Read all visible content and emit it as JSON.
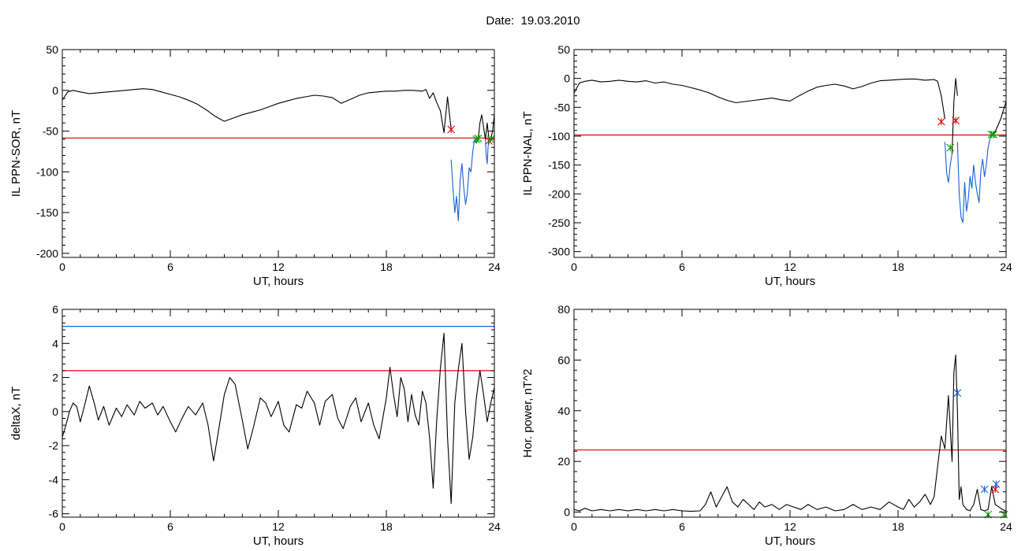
{
  "figure": {
    "title": "Date:  19.03.2010"
  },
  "chart_data": [
    {
      "type": "line",
      "xlabel": "UT, hours",
      "ylabel": "IL PPN-SOR, nT",
      "xlim": [
        0,
        24
      ],
      "ylim": [
        -205,
        50
      ],
      "xticks": [
        0,
        6,
        12,
        18,
        24
      ],
      "yticks": [
        50,
        0,
        -50,
        -100,
        -150,
        -200
      ],
      "hlines": [
        {
          "y": -58.5,
          "color": "#e00000"
        }
      ],
      "series": [
        {
          "color": "#000000",
          "x": [
            0,
            0.3,
            0.6,
            1,
            1.5,
            2,
            2.5,
            3,
            3.5,
            4,
            4.5,
            5,
            5.5,
            6,
            6.5,
            7,
            7.5,
            8,
            8.5,
            9,
            9.5,
            10,
            10.5,
            11,
            11.5,
            12,
            12.5,
            13,
            13.5,
            14,
            14.5,
            15,
            15.5,
            16,
            16.5,
            17,
            17.5,
            18,
            18.5,
            19,
            19.5,
            20,
            20.2,
            20.4,
            20.6,
            20.8,
            21.0,
            21.2,
            21.4,
            21.6
          ],
          "y": [
            -12,
            -2,
            0,
            -2,
            -4,
            -3,
            -2,
            -1,
            0,
            1,
            2,
            1,
            -2,
            -5,
            -8,
            -12,
            -17,
            -24,
            -32,
            -38,
            -34,
            -30,
            -27,
            -24,
            -20,
            -16,
            -13,
            -10,
            -8,
            -6,
            -7,
            -9,
            -16,
            -11,
            -6,
            -3,
            -2,
            -1,
            -1,
            0,
            0,
            -1,
            1,
            -10,
            -3,
            -15,
            -25,
            -52,
            -8,
            -48
          ]
        },
        {
          "color": "#1560d8",
          "x": [
            21.6,
            21.7,
            21.8,
            21.9,
            22.0,
            22.1,
            22.2,
            22.3,
            22.4,
            22.5,
            22.6,
            22.7,
            22.8,
            22.9,
            23.0,
            23.1
          ],
          "y": [
            -85,
            -120,
            -150,
            -130,
            -160,
            -110,
            -90,
            -120,
            -140,
            -125,
            -95,
            -100,
            -75,
            -60,
            -65,
            -60
          ]
        },
        {
          "color": "#000000",
          "x": [
            23.1,
            23.2,
            23.3,
            23.4,
            23.5,
            23.6,
            23.7,
            23.8,
            23.9,
            24.0
          ],
          "y": [
            -60,
            -40,
            -30,
            -45,
            -60,
            -40,
            -60,
            -60,
            -50,
            -30
          ]
        },
        {
          "color": "#1560d8",
          "x": [
            23.5,
            23.55,
            23.6,
            23.65,
            23.7
          ],
          "y": [
            -60,
            -80,
            -90,
            -70,
            -60
          ]
        }
      ],
      "markers": [
        {
          "x": 21.6,
          "y": -48,
          "color": "#e00000"
        },
        {
          "x": 23.0,
          "y": -60,
          "color": "#00a000"
        },
        {
          "x": 23.1,
          "y": -59,
          "color": "#00a000"
        },
        {
          "x": 23.7,
          "y": -62,
          "color": "#e00000"
        },
        {
          "x": 23.8,
          "y": -60,
          "color": "#00a000"
        }
      ]
    },
    {
      "type": "line",
      "xlabel": "UT, hours",
      "ylabel": "IL PPN-NAL, nT",
      "xlim": [
        0,
        24
      ],
      "ylim": [
        -310,
        50
      ],
      "xticks": [
        0,
        6,
        12,
        18,
        24
      ],
      "yticks": [
        50,
        0,
        -50,
        -100,
        -150,
        -200,
        -250,
        -300
      ],
      "hlines": [
        {
          "y": -98,
          "color": "#e00000"
        }
      ],
      "series": [
        {
          "color": "#000000",
          "x": [
            0,
            0.3,
            0.6,
            1,
            1.5,
            2,
            2.5,
            3,
            3.5,
            4,
            4.5,
            5,
            5.5,
            6,
            6.5,
            7,
            7.5,
            8,
            8.5,
            9,
            9.5,
            10,
            10.5,
            11,
            11.5,
            12,
            12.5,
            13,
            13.5,
            14,
            14.5,
            15,
            15.5,
            16,
            16.5,
            17,
            17.5,
            18,
            18.5,
            19,
            19.5,
            20,
            20.2,
            20.4,
            20.6
          ],
          "y": [
            -25,
            -8,
            -5,
            -3,
            -6,
            -5,
            -3,
            -5,
            -6,
            -4,
            -8,
            -6,
            -10,
            -12,
            -16,
            -20,
            -25,
            -32,
            -38,
            -42,
            -40,
            -38,
            -36,
            -34,
            -37,
            -39,
            -30,
            -22,
            -15,
            -12,
            -10,
            -13,
            -18,
            -14,
            -8,
            -4,
            -3,
            -2,
            -1,
            -1,
            -3,
            -2,
            -5,
            -30,
            -70
          ]
        },
        {
          "color": "#1560d8",
          "x": [
            20.6,
            20.7,
            20.8,
            20.9,
            21.0
          ],
          "y": [
            -110,
            -165,
            -180,
            -150,
            -130
          ]
        },
        {
          "color": "#000000",
          "x": [
            21.0,
            21.1,
            21.2,
            21.3
          ],
          "y": [
            -130,
            -40,
            0,
            -30
          ]
        },
        {
          "color": "#1560d8",
          "x": [
            21.3,
            21.4,
            21.5,
            21.6,
            21.7,
            21.8,
            21.9,
            22.0,
            22.1,
            22.2,
            22.3,
            22.4,
            22.5,
            22.6,
            22.7,
            22.8,
            22.9,
            23.0,
            23.1,
            23.2,
            23.3
          ],
          "y": [
            -110,
            -200,
            -240,
            -250,
            -180,
            -230,
            -210,
            -170,
            -190,
            -150,
            -180,
            -200,
            -215,
            -160,
            -140,
            -170,
            -150,
            -120,
            -105,
            -98,
            -98
          ]
        },
        {
          "color": "#000000",
          "x": [
            23.3,
            23.5,
            23.7,
            24.0
          ],
          "y": [
            -98,
            -85,
            -70,
            -40
          ]
        }
      ],
      "markers": [
        {
          "x": 20.4,
          "y": -75,
          "color": "#e00000"
        },
        {
          "x": 20.9,
          "y": -120,
          "color": "#00a000"
        },
        {
          "x": 21.2,
          "y": -73,
          "color": "#e00000"
        },
        {
          "x": 23.2,
          "y": -97,
          "color": "#00a000"
        },
        {
          "x": 23.3,
          "y": -97,
          "color": "#00a000"
        }
      ]
    },
    {
      "type": "line",
      "xlabel": "UT, hours",
      "ylabel": "deltaX, nT",
      "xlim": [
        0,
        24
      ],
      "ylim": [
        -6.2,
        6
      ],
      "xticks": [
        0,
        6,
        12,
        18,
        24
      ],
      "yticks": [
        6,
        4,
        2,
        0,
        -2,
        -4,
        -6
      ],
      "hlines": [
        {
          "y": 5.0,
          "color": "#1560d8"
        },
        {
          "y": 2.4,
          "color": "#e00000"
        }
      ],
      "series": [
        {
          "color": "#000000",
          "x": [
            0,
            0.2,
            0.4,
            0.6,
            0.8,
            1.0,
            1.2,
            1.5,
            1.8,
            2.0,
            2.3,
            2.6,
            3.0,
            3.3,
            3.6,
            4.0,
            4.3,
            4.6,
            5.0,
            5.3,
            5.6,
            6.0,
            6.3,
            6.6,
            7.0,
            7.4,
            7.8,
            8.1,
            8.4,
            8.7,
            9.0,
            9.3,
            9.6,
            10.0,
            10.3,
            10.6,
            11.0,
            11.3,
            11.6,
            12.0,
            12.3,
            12.6,
            13.0,
            13.3,
            13.6,
            14.0,
            14.3,
            14.6,
            15.0,
            15.3,
            15.6,
            16.0,
            16.3,
            16.6,
            17.0,
            17.3,
            17.6,
            18.0,
            18.2,
            18.4,
            18.6,
            18.8,
            19.0,
            19.2,
            19.4,
            19.6,
            19.8,
            20.0,
            20.2,
            20.4,
            20.6,
            20.8,
            21.0,
            21.2,
            21.4,
            21.6,
            21.8,
            22.0,
            22.2,
            22.4,
            22.6,
            22.8,
            23.0,
            23.2,
            23.4,
            23.6,
            23.8,
            24.0
          ],
          "y": [
            -1.5,
            -0.8,
            0,
            0.5,
            0.3,
            -0.6,
            0.2,
            1.5,
            0.4,
            -0.5,
            0.3,
            -0.8,
            0.2,
            -0.3,
            0.4,
            -0.2,
            0.6,
            0.2,
            0.5,
            -0.2,
            0.3,
            -0.6,
            -1.2,
            -0.5,
            0.3,
            -0.2,
            0.5,
            -0.8,
            -2.9,
            -1.0,
            1.0,
            2.0,
            1.6,
            -0.5,
            -2.2,
            -1.0,
            0.8,
            0.5,
            -0.3,
            0.6,
            -0.8,
            -1.2,
            0.4,
            0.2,
            1.2,
            0.5,
            -0.8,
            0.6,
            1.0,
            -0.4,
            -1.0,
            0.3,
            0.8,
            -0.6,
            0.5,
            -0.8,
            -1.6,
            0.8,
            2.6,
            1.0,
            -0.3,
            2.0,
            1.3,
            -0.6,
            1.0,
            -0.2,
            -0.8,
            1.2,
            0.5,
            -1.5,
            -4.5,
            -0.5,
            2.5,
            4.6,
            -1.5,
            -5.4,
            0.5,
            2.5,
            4.0,
            0.0,
            -2.8,
            -1.5,
            0.8,
            2.4,
            1.0,
            -0.6,
            0.5,
            1.4
          ]
        }
      ],
      "markers": []
    },
    {
      "type": "line",
      "xlabel": "UT, hours",
      "ylabel": "Hor. power, nT^2",
      "xlim": [
        0,
        24
      ],
      "ylim": [
        -2,
        80
      ],
      "xticks": [
        0,
        6,
        12,
        18,
        24
      ],
      "yticks": [
        80,
        60,
        40,
        20,
        0
      ],
      "hlines": [
        {
          "y": 24.5,
          "color": "#e00000"
        }
      ],
      "series": [
        {
          "color": "#000000",
          "x": [
            0,
            0.3,
            0.6,
            1.0,
            1.5,
            2.0,
            2.5,
            3.0,
            3.5,
            4.0,
            4.5,
            5.0,
            5.5,
            6.0,
            6.5,
            7.0,
            7.3,
            7.6,
            7.9,
            8.2,
            8.5,
            8.8,
            9.1,
            9.4,
            9.7,
            10.0,
            10.3,
            10.6,
            11.0,
            11.4,
            11.8,
            12.2,
            12.6,
            13.0,
            13.5,
            14.0,
            14.5,
            15.0,
            15.5,
            16.0,
            16.5,
            17.0,
            17.5,
            18.0,
            18.3,
            18.6,
            18.9,
            19.2,
            19.5,
            19.8,
            20.0,
            20.2,
            20.4,
            20.6,
            20.8,
            21.0,
            21.1,
            21.2,
            21.3,
            21.4,
            21.5,
            21.6,
            21.8,
            22.0,
            22.2,
            22.4,
            22.6,
            22.8,
            23.0,
            23.2,
            23.4,
            23.6,
            23.8,
            24.0
          ],
          "y": [
            1,
            0.5,
            1.5,
            0.5,
            1,
            0.5,
            1,
            0.5,
            1,
            0.5,
            1,
            0.5,
            1,
            0.5,
            0.3,
            0.5,
            3,
            8,
            2,
            6,
            10,
            4,
            2,
            5,
            3,
            1,
            4,
            2,
            3,
            1,
            3,
            2,
            1,
            3,
            1,
            2,
            0.5,
            1,
            3,
            1,
            2,
            1,
            4,
            2,
            1,
            5,
            2,
            4,
            7,
            3,
            6,
            18,
            30,
            25,
            46,
            20,
            55,
            62,
            40,
            5,
            10,
            3,
            1,
            0.5,
            3,
            9,
            1,
            0.5,
            1,
            10,
            3,
            2,
            1,
            0.5
          ]
        }
      ],
      "markers": [
        {
          "x": 21.3,
          "y": 47,
          "color": "#1560d8"
        },
        {
          "x": 22.8,
          "y": 9,
          "color": "#1560d8"
        },
        {
          "x": 23.4,
          "y": 9,
          "color": "#e00000"
        },
        {
          "x": 23.45,
          "y": 11,
          "color": "#1560d8"
        },
        {
          "x": 23.0,
          "y": -1,
          "color": "#00a000"
        },
        {
          "x": 23.9,
          "y": -1,
          "color": "#00a000"
        }
      ]
    }
  ]
}
